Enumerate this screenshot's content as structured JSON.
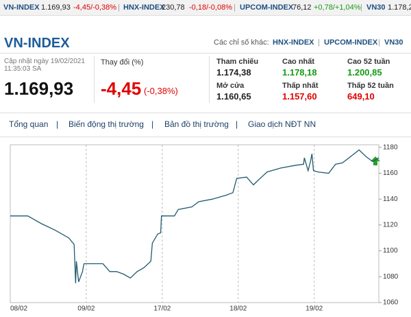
{
  "ticker": [
    {
      "name": "VN-INDEX",
      "value": "1.169,93",
      "change": "-4,45/-0,38%"
    },
    {
      "name": "HNX-INDEX",
      "value": "230,78",
      "change": "-0,18/-0,08%"
    },
    {
      "name": "UPCOM-INDEX",
      "value": "76,12",
      "change": "+0,78/+1,04%"
    },
    {
      "name": "VN30",
      "value": "1.178,2"
    }
  ],
  "header": {
    "title": "VN-INDEX",
    "other_label": "Các chỉ số khác:",
    "other_links": [
      "HNX-INDEX",
      "UPCOM-INDEX",
      "VN30"
    ],
    "updated": "Cập nhật ngày 19/02/2021",
    "time": "11:35:03 SA",
    "price": "1.169,93",
    "change_label": "Thay đổi (%)",
    "change": "-4,45",
    "change_pct": "(-0,38%)"
  },
  "stats": [
    {
      "label": "Tham chiếu",
      "value": "1.174,38"
    },
    {
      "label": "Cao nhất",
      "value": "1.178,18"
    },
    {
      "label": "Cao 52 tuần",
      "value": "1.200,85"
    },
    {
      "label": "Mở cửa",
      "value": "1.160,65"
    },
    {
      "label": "Thấp nhất",
      "value": "1.157,60"
    },
    {
      "label": "Thấp 52 tuần",
      "value": "649,10"
    }
  ],
  "tabs": [
    "Tổng quan",
    "Biến động thị trường",
    "Bản đồ thị trường",
    "Giao dịch NĐT NN"
  ],
  "chart_data": {
    "type": "line",
    "color": "#1d5a6c",
    "xgrid": true,
    "x": [
      0,
      0.23,
      0.32,
      0.41,
      0.59,
      0.77,
      0.84,
      0.86,
      0.87,
      0.9,
      0.95,
      0.97,
      1.04,
      1.22,
      1.31,
      1.4,
      1.49,
      1.58,
      1.67,
      1.76,
      1.85,
      1.87,
      1.94,
      1.98,
      1.99,
      2.16,
      2.21,
      2.39,
      2.48,
      2.66,
      2.84,
      2.93,
      2.98,
      3.11,
      3.2,
      3.27,
      3.38,
      3.56,
      3.74,
      3.86,
      3.87,
      3.92,
      3.95,
      3.97,
      3.99,
      4.05,
      4.19,
      4.28,
      4.37,
      4.46,
      4.59,
      4.68,
      4.77,
      4.85
    ],
    "values": [
      1127,
      1127,
      1124,
      1121,
      1116,
      1110,
      1105,
      1075,
      1092,
      1076,
      1084,
      1090,
      1090,
      1090,
      1084,
      1084,
      1082,
      1079,
      1084,
      1087,
      1092,
      1106,
      1113,
      1114,
      1127,
      1127,
      1132,
      1134,
      1138,
      1140,
      1143,
      1145,
      1156,
      1157,
      1151,
      1155,
      1161,
      1164,
      1166,
      1167,
      1172,
      1162,
      1169,
      1175,
      1162,
      1161,
      1160,
      1167,
      1168,
      1172,
      1178,
      1173,
      1169,
      1172
    ],
    "xlim": [
      0,
      4.85
    ],
    "ylim": [
      1060,
      1182
    ],
    "xticks": [
      {
        "value": 0,
        "label": "08/02"
      },
      {
        "value": 1,
        "label": "09/02"
      },
      {
        "value": 2,
        "label": "17/02"
      },
      {
        "value": 3,
        "label": "18/02"
      },
      {
        "value": 4,
        "label": "19/02"
      }
    ],
    "yticks": [
      1060,
      1080,
      1100,
      1120,
      1140,
      1160,
      1180
    ]
  }
}
